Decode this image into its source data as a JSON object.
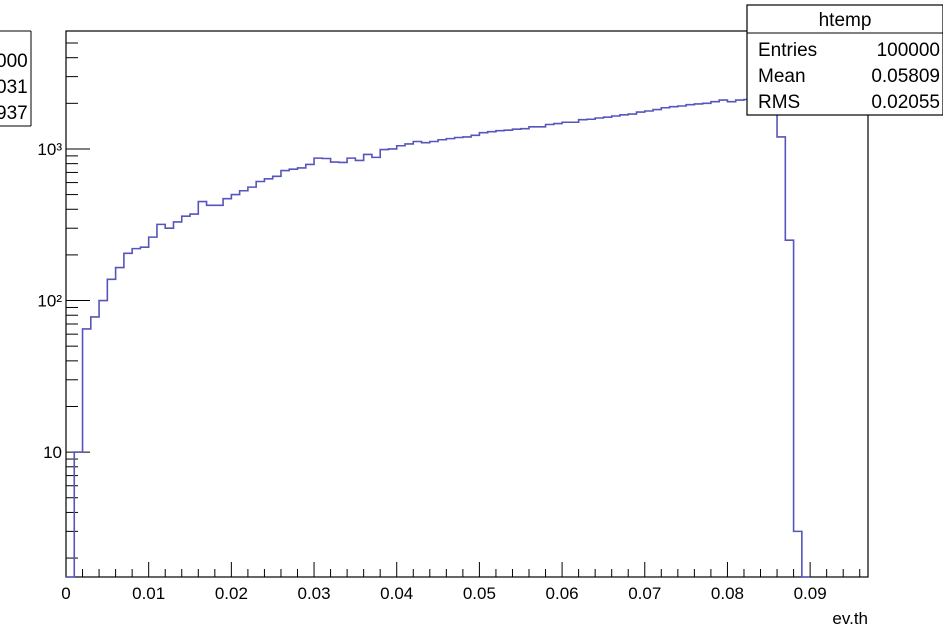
{
  "chart_data": {
    "type": "bar",
    "histogram": true,
    "xlabel": "ev.th",
    "ylabel": "",
    "xlim": [
      0,
      0.097
    ],
    "ylim": [
      1.5,
      6000
    ],
    "log_y": true,
    "grid": false,
    "line_color": "#5555bb",
    "x_ticks": [
      0,
      0.01,
      0.02,
      0.03,
      0.04,
      0.05,
      0.06,
      0.07,
      0.08,
      0.09
    ],
    "x_tick_labels": [
      "0",
      "0.01",
      "0.02",
      "0.03",
      "0.04",
      "0.05",
      "0.06",
      "0.07",
      "0.08",
      "0.09"
    ],
    "y_ticks": [
      10,
      100,
      1000
    ],
    "y_tick_labels": [
      "10",
      "10²",
      "10³"
    ],
    "bin_edges": [
      0,
      0.001,
      0.002,
      0.003,
      0.004,
      0.005,
      0.006,
      0.007,
      0.008,
      0.009,
      0.01,
      0.011,
      0.012,
      0.013,
      0.014,
      0.015,
      0.016,
      0.017,
      0.018,
      0.019,
      0.02,
      0.021,
      0.022,
      0.023,
      0.024,
      0.025,
      0.026,
      0.027,
      0.028,
      0.029,
      0.03,
      0.031,
      0.032,
      0.033,
      0.034,
      0.035,
      0.036,
      0.037,
      0.038,
      0.039,
      0.04,
      0.041,
      0.042,
      0.043,
      0.044,
      0.045,
      0.046,
      0.047,
      0.048,
      0.049,
      0.05,
      0.051,
      0.052,
      0.053,
      0.054,
      0.055,
      0.056,
      0.057,
      0.058,
      0.059,
      0.06,
      0.061,
      0.062,
      0.063,
      0.064,
      0.065,
      0.066,
      0.067,
      0.068,
      0.069,
      0.07,
      0.071,
      0.072,
      0.073,
      0.074,
      0.075,
      0.076,
      0.077,
      0.078,
      0.079,
      0.08,
      0.081,
      0.082,
      0.083,
      0.084,
      0.085,
      0.086,
      0.087,
      0.088,
      0.089,
      0.09
    ],
    "values": [
      0,
      10,
      65,
      78,
      100,
      138,
      165,
      205,
      220,
      225,
      262,
      318,
      300,
      330,
      360,
      372,
      450,
      425,
      425,
      470,
      500,
      530,
      560,
      610,
      635,
      660,
      720,
      735,
      750,
      790,
      870,
      865,
      820,
      815,
      870,
      840,
      920,
      880,
      990,
      1000,
      1050,
      1080,
      1120,
      1100,
      1120,
      1150,
      1170,
      1190,
      1200,
      1230,
      1280,
      1300,
      1320,
      1330,
      1350,
      1360,
      1400,
      1400,
      1450,
      1470,
      1500,
      1500,
      1560,
      1570,
      1600,
      1620,
      1650,
      1680,
      1700,
      1750,
      1780,
      1820,
      1870,
      1900,
      1920,
      1960,
      1980,
      2000,
      2050,
      2100,
      2050,
      2100,
      2120,
      2150,
      2180,
      2200,
      1200,
      250,
      3,
      0
    ],
    "stats_box": {
      "title": "htemp",
      "rows": [
        {
          "label": "Entries",
          "value": "100000"
        },
        {
          "label": "Mean",
          "value": "0.05809"
        },
        {
          "label": "RMS",
          "value": "0.02055"
        }
      ]
    },
    "background_stats_box": {
      "values": [
        "000",
        "031",
        "937"
      ]
    }
  }
}
